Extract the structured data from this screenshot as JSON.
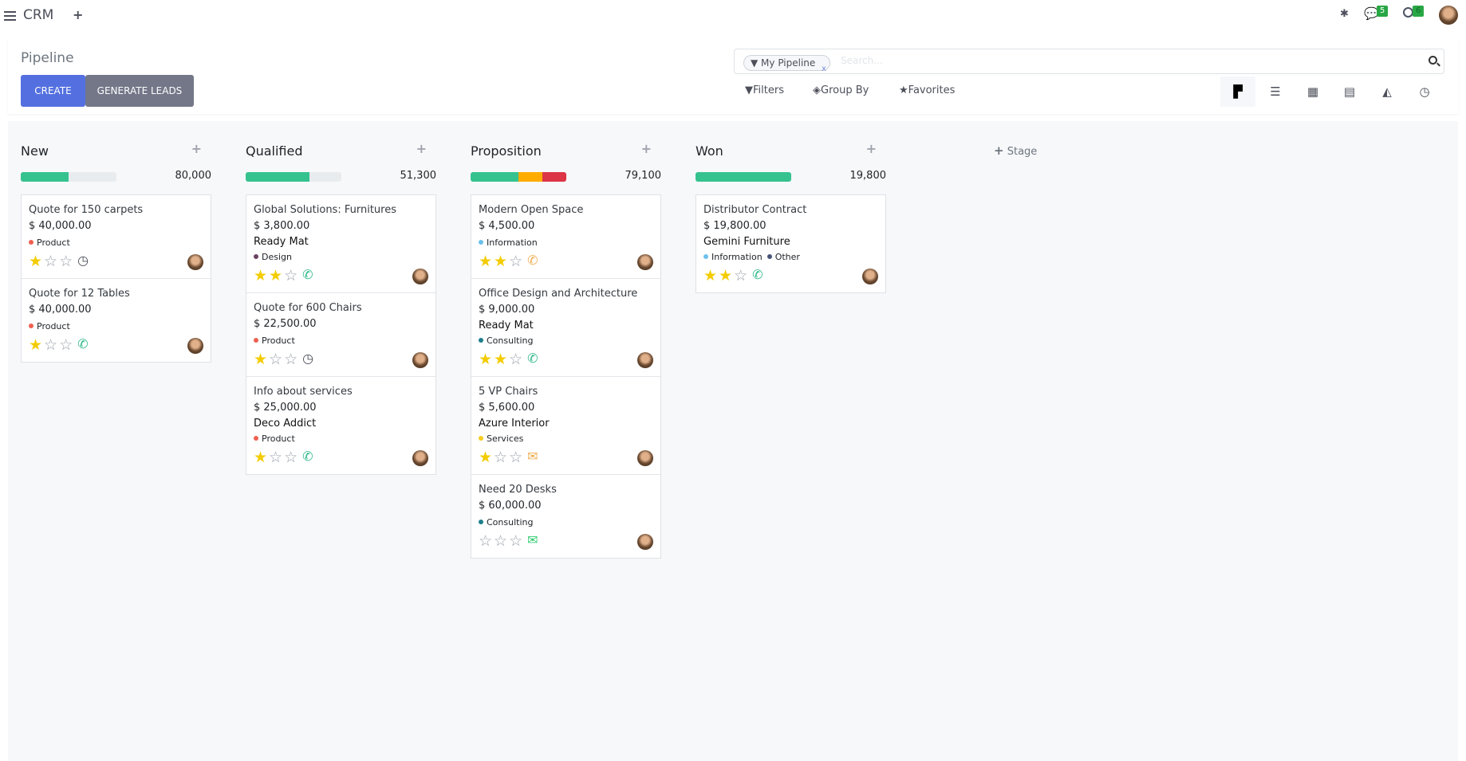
{
  "navbar": {
    "app_name": "CRM",
    "chat_badge": "5",
    "activity_badge": "6"
  },
  "control_panel": {
    "title": "Pipeline",
    "create_label": "CREATE",
    "generate_leads_label": "GENERATE LEADS",
    "search": {
      "facet": "My Pipeline",
      "placeholder": "Search..."
    },
    "filters_label": "Filters",
    "group_by_label": "Group By",
    "favorites_label": "Favorites",
    "views": [
      "kanban",
      "list",
      "calendar",
      "pivot",
      "graph",
      "activity"
    ],
    "active_view": "kanban"
  },
  "colors": {
    "primary": "#5470e0",
    "secondary": "#737788",
    "success": "#36c28f",
    "warning": "#ffac00",
    "danger": "#dc3545"
  },
  "add_stage_label": "Stage",
  "columns": [
    {
      "title": "New",
      "total": "80,000",
      "progress": [
        {
          "color": "#36c28f",
          "pct": 50
        }
      ],
      "cards": [
        {
          "title": "Quote for 150 carpets",
          "amount": "$ 40,000.00",
          "company": "",
          "tags": [
            {
              "label": "Product",
              "color": "#f06050"
            }
          ],
          "stars": 1,
          "activity": "clock-icon",
          "activity_color": "#4c4f5a"
        },
        {
          "title": "Quote for 12 Tables",
          "amount": "$ 40,000.00",
          "company": "",
          "tags": [
            {
              "label": "Product",
              "color": "#f06050"
            }
          ],
          "stars": 1,
          "activity": "phone-icon",
          "activity_color": "#2eb88a"
        }
      ]
    },
    {
      "title": "Qualified",
      "total": "51,300",
      "progress": [
        {
          "color": "#36c28f",
          "pct": 67
        }
      ],
      "cards": [
        {
          "title": "Global Solutions: Furnitures",
          "amount": "$ 3,800.00",
          "company": "Ready Mat",
          "tags": [
            {
              "label": "Design",
              "color": "#6c4160"
            }
          ],
          "stars": 2,
          "activity": "phone-icon",
          "activity_color": "#2eb88a"
        },
        {
          "title": "Quote for 600 Chairs",
          "amount": "$ 22,500.00",
          "company": "",
          "tags": [
            {
              "label": "Product",
              "color": "#f06050"
            }
          ],
          "stars": 1,
          "activity": "clock-icon",
          "activity_color": "#4c4f5a"
        },
        {
          "title": "Info about services",
          "amount": "$ 25,000.00",
          "company": "Deco Addict",
          "tags": [
            {
              "label": "Product",
              "color": "#f06050"
            }
          ],
          "stars": 1,
          "activity": "phone-icon",
          "activity_color": "#2eb88a"
        }
      ]
    },
    {
      "title": "Proposition",
      "total": "79,100",
      "progress": [
        {
          "color": "#36c28f",
          "pct": 50
        },
        {
          "color": "#ffac00",
          "pct": 25
        },
        {
          "color": "#dc3545",
          "pct": 25
        }
      ],
      "cards": [
        {
          "title": "Modern Open Space",
          "amount": "$ 4,500.00",
          "company": "",
          "tags": [
            {
              "label": "Information",
              "color": "#6cc1ed"
            }
          ],
          "stars": 2,
          "activity": "phone-icon",
          "activity_color": "#f0ad4e"
        },
        {
          "title": "Office Design and Architecture",
          "amount": "$ 9,000.00",
          "company": "Ready Mat",
          "tags": [
            {
              "label": "Consulting",
              "color": "#1f7e8c"
            }
          ],
          "stars": 2,
          "activity": "phone-icon",
          "activity_color": "#2eb88a"
        },
        {
          "title": "5 VP Chairs",
          "amount": "$ 5,600.00",
          "company": "Azure Interior",
          "tags": [
            {
              "label": "Services",
              "color": "#f7cd1f"
            }
          ],
          "stars": 1,
          "activity": "envelope-icon",
          "activity_color": "#f0ad4e"
        },
        {
          "title": "Need 20 Desks",
          "amount": "$ 60,000.00",
          "company": "",
          "tags": [
            {
              "label": "Consulting",
              "color": "#1f7e8c"
            }
          ],
          "stars": 0,
          "activity": "envelope-icon",
          "activity_color": "#2ecc71"
        }
      ]
    },
    {
      "title": "Won",
      "total": "19,800",
      "progress": [
        {
          "color": "#36c28f",
          "pct": 100
        }
      ],
      "cards": [
        {
          "title": "Distributor Contract",
          "amount": "$ 19,800.00",
          "company": "Gemini Furniture",
          "tags": [
            {
              "label": "Information",
              "color": "#6cc1ed"
            },
            {
              "label": "Other",
              "color": "#475577"
            }
          ],
          "stars": 2,
          "activity": "phone-icon",
          "activity_color": "#2eb88a"
        }
      ]
    }
  ]
}
